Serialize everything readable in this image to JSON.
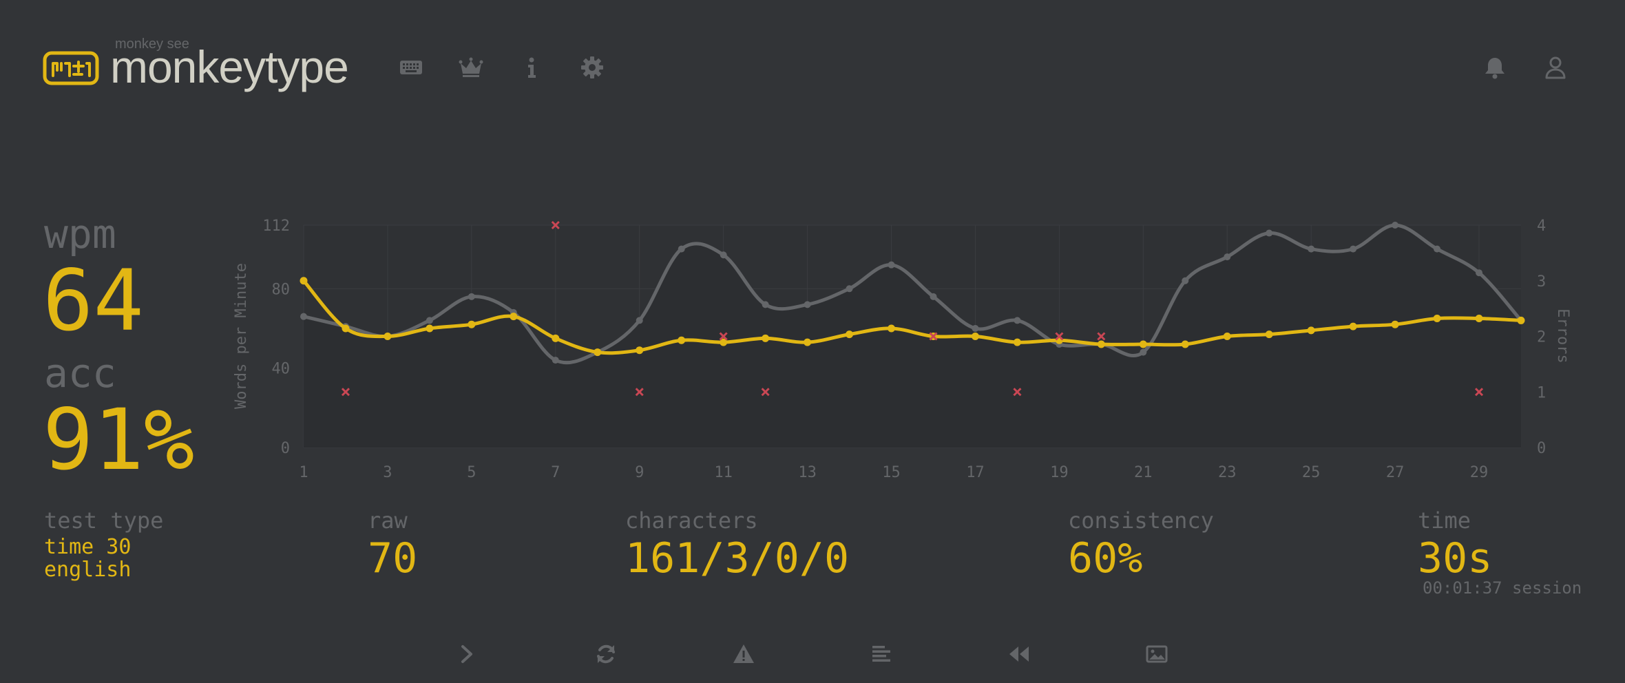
{
  "header": {
    "brand_small": "monkey see",
    "brand": "monkeytype",
    "nav": [
      "keyboard-icon",
      "crown-icon",
      "info-icon",
      "gear-icon"
    ],
    "right": [
      "bell-icon",
      "user-icon"
    ]
  },
  "stats": {
    "wpm_label": "wpm",
    "wpm_value": "64",
    "acc_label": "acc",
    "acc_value": "91%"
  },
  "details": {
    "test_type_label": "test type",
    "test_type_line1": "time 30",
    "test_type_line2": "english",
    "raw_label": "raw",
    "raw_value": "70",
    "characters_label": "characters",
    "characters_value": "161/3/0/0",
    "consistency_label": "consistency",
    "consistency_value": "60%",
    "time_label": "time",
    "time_value": "30s",
    "session_text": "00:01:37 session"
  },
  "footer": [
    "next-test-icon",
    "restart-icon",
    "report-icon",
    "words-history-icon",
    "replay-icon",
    "screenshot-icon"
  ],
  "colors": {
    "bg": "#323437",
    "main": "#e2b714",
    "sub": "#646669",
    "text": "#d1d0c5",
    "error": "#ca4754"
  },
  "chart_data": {
    "type": "line",
    "x": [
      1,
      2,
      3,
      4,
      5,
      6,
      7,
      8,
      9,
      10,
      11,
      12,
      13,
      14,
      15,
      16,
      17,
      18,
      19,
      20,
      21,
      22,
      23,
      24,
      25,
      26,
      27,
      28,
      29,
      30
    ],
    "x_ticks": [
      "1",
      "3",
      "5",
      "7",
      "9",
      "11",
      "13",
      "15",
      "17",
      "19",
      "21",
      "23",
      "25",
      "27",
      "29"
    ],
    "y_ticks": [
      "0",
      "40",
      "80",
      "112"
    ],
    "y2_ticks": [
      "0",
      "1",
      "2",
      "3",
      "4"
    ],
    "ylabel": "Words per Minute",
    "y2label": "Errors",
    "ylim": [
      0,
      112
    ],
    "y2lim": [
      0,
      4
    ],
    "series": [
      {
        "role": "wpm",
        "color": "#e2b714",
        "values": [
          84,
          60,
          56,
          60,
          62,
          66,
          55,
          48,
          49,
          54,
          53,
          55,
          53,
          57,
          60,
          56,
          56,
          53,
          54,
          52,
          52,
          52,
          56,
          57,
          59,
          61,
          62,
          65,
          65,
          64
        ]
      },
      {
        "role": "raw",
        "color": "#646669",
        "values": [
          66,
          61,
          56,
          64,
          76,
          68,
          44,
          48,
          64,
          100,
          97,
          72,
          72,
          80,
          92,
          76,
          60,
          64,
          52,
          52,
          48,
          84,
          96,
          108,
          100,
          100,
          112,
          100,
          88,
          64
        ]
      }
    ],
    "errors": {
      "x": [
        2,
        7,
        9,
        11,
        12,
        16,
        18,
        19,
        20,
        29
      ],
      "y": [
        1,
        4,
        1,
        2,
        1,
        2,
        1,
        2,
        2,
        1
      ]
    }
  }
}
